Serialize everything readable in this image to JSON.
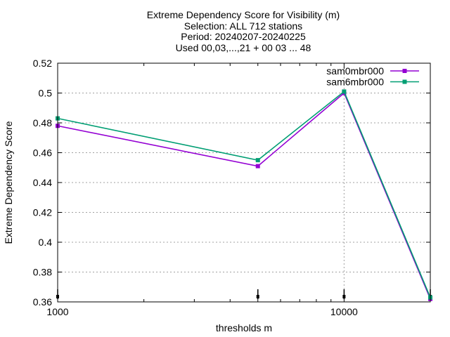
{
  "chart_data": {
    "type": "line",
    "title_lines": [
      "Extreme Dependency Score  for Visibility (m)",
      "Selection: ALL    712 stations",
      "Period: 20240207-20240225",
      "Used 00,03,...,21 + 00 03 ... 48"
    ],
    "xlabel": "thresholds m",
    "ylabel": "Extreme Dependency Score",
    "xscale": "log",
    "xlim": [
      1000,
      20000
    ],
    "ylim": [
      0.36,
      0.52
    ],
    "x_ticks": [
      1000,
      10000
    ],
    "x_tick_labels": [
      "1000",
      "10000"
    ],
    "y_ticks": [
      0.36,
      0.38,
      0.4,
      0.42,
      0.44,
      0.46,
      0.48,
      0.5,
      0.52
    ],
    "y_tick_labels": [
      "0.36",
      "0.38",
      "0.4",
      "0.42",
      "0.44",
      "0.46",
      "0.48",
      "0.5",
      "0.52"
    ],
    "grid": true,
    "legend_position": "top-right",
    "x": [
      1000,
      5000,
      10000,
      20000
    ],
    "series": [
      {
        "name": "sam0mbr000",
        "color": "#9400d3",
        "values": [
          0.478,
          0.451,
          0.5,
          0.362
        ]
      },
      {
        "name": "sam6mbr000",
        "color": "#009e73",
        "values": [
          0.483,
          0.455,
          0.501,
          0.363
        ]
      }
    ],
    "error_markers_x": [
      1000,
      5000,
      10000,
      20000
    ]
  }
}
